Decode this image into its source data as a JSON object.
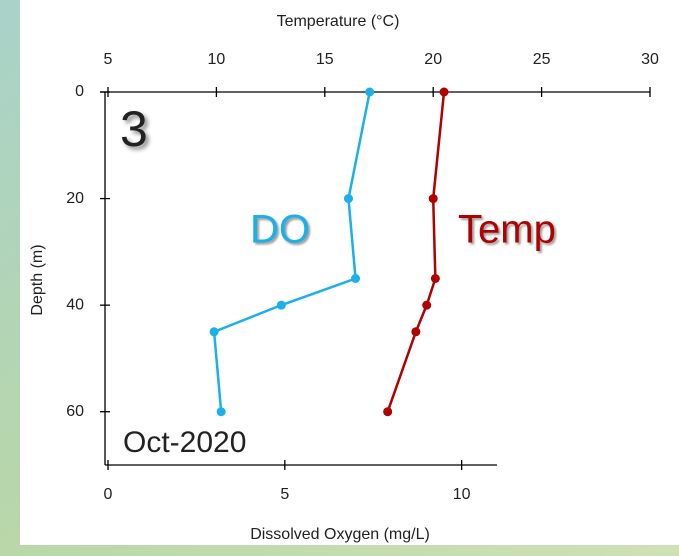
{
  "chart_data": {
    "type": "line",
    "x_label": "Dissolved Oxygen (mg/L)",
    "x2_label": "Temperature (°C)",
    "y_label": "Depth (m)",
    "annotations": [
      "3",
      "Oct-2020"
    ],
    "xlim": [
      0,
      11
    ],
    "xticks": [
      0,
      5,
      10
    ],
    "x2lim": [
      5,
      30
    ],
    "x2ticks": [
      5,
      10,
      15,
      20,
      25,
      30
    ],
    "ylim": [
      70,
      0
    ],
    "yticks": [
      0,
      20,
      40,
      60
    ],
    "series": [
      {
        "name": "DO",
        "color": "#1ab0e8",
        "axis": "x",
        "y": [
          0,
          20,
          35,
          40,
          45,
          60
        ],
        "values": [
          7.4,
          6.8,
          7.0,
          4.9,
          3.0,
          3.2
        ]
      },
      {
        "name": "Temp",
        "color": "#b00000",
        "axis": "x2",
        "y": [
          0,
          20,
          35,
          40,
          45,
          60
        ],
        "values": [
          20.5,
          20.0,
          20.1,
          19.7,
          19.2,
          17.9
        ]
      }
    ]
  }
}
